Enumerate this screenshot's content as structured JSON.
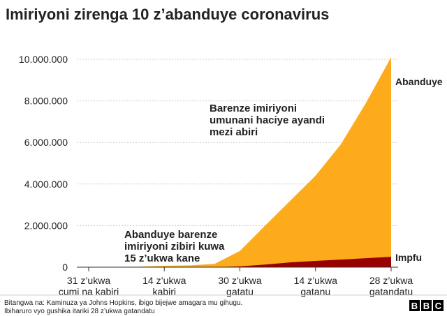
{
  "chart_data": {
    "type": "area",
    "title": "Imiriyoni zirenga 10 z’abanduye coronavirus",
    "x": [
      0,
      15,
      30,
      45,
      60,
      75,
      90,
      105,
      120,
      135,
      150,
      165,
      180
    ],
    "series": [
      {
        "name": "Abanduye",
        "color": "#fdaa1b",
        "values": [
          0,
          10000,
          20000,
          67000,
          85000,
          160000,
          780000,
          2000000,
          3200000,
          4400000,
          5900000,
          7900000,
          10100000
        ]
      },
      {
        "name": "Impfu",
        "color": "#990000",
        "values": [
          0,
          200,
          400,
          1500,
          2900,
          6000,
          37000,
          126000,
          230000,
          300000,
          365000,
          430000,
          500000
        ]
      }
    ],
    "xlim": [
      -7,
      180
    ],
    "xticks": [
      {
        "value": 0,
        "label": "31 z’ukwa\ncumi na kabiri"
      },
      {
        "value": 45,
        "label": "14 z’ukwa\nkabiri"
      },
      {
        "value": 90,
        "label": "30 z’ukwa\ngatatu"
      },
      {
        "value": 135,
        "label": "14 z’ukwa\ngatanu"
      },
      {
        "value": 180,
        "label": "28 z’ukwa\ngatandatu"
      }
    ],
    "ylim": [
      0,
      10000000
    ],
    "yticks": [
      0,
      {
        "value": 2000000,
        "label": "2.000.000"
      },
      {
        "value": 4000000,
        "label": "4.000.000"
      },
      {
        "value": 6000000,
        "label": "6.000.000"
      },
      {
        "value": 8000000,
        "label": "8.000.000"
      },
      {
        "value": 10000000,
        "label": "10.000.000"
      }
    ],
    "grid": true,
    "annotations": [
      {
        "lines": [
          "Barenze imiriyoni",
          "umunani haciye ayandi",
          "mezi abiri"
        ]
      },
      {
        "lines": [
          "Abanduye barenze",
          "imiriyoni zibiri kuwa",
          "15 z’ukwa kane"
        ]
      }
    ],
    "source": [
      "Bitangwa na: Kaminuza ya Johns Hopkins, ibigo bijejwe amagara mu gihugu.",
      "Ibiharuro vyo gushika itariki 28 z’ukwa gatandatu"
    ],
    "logo": "BBC"
  }
}
